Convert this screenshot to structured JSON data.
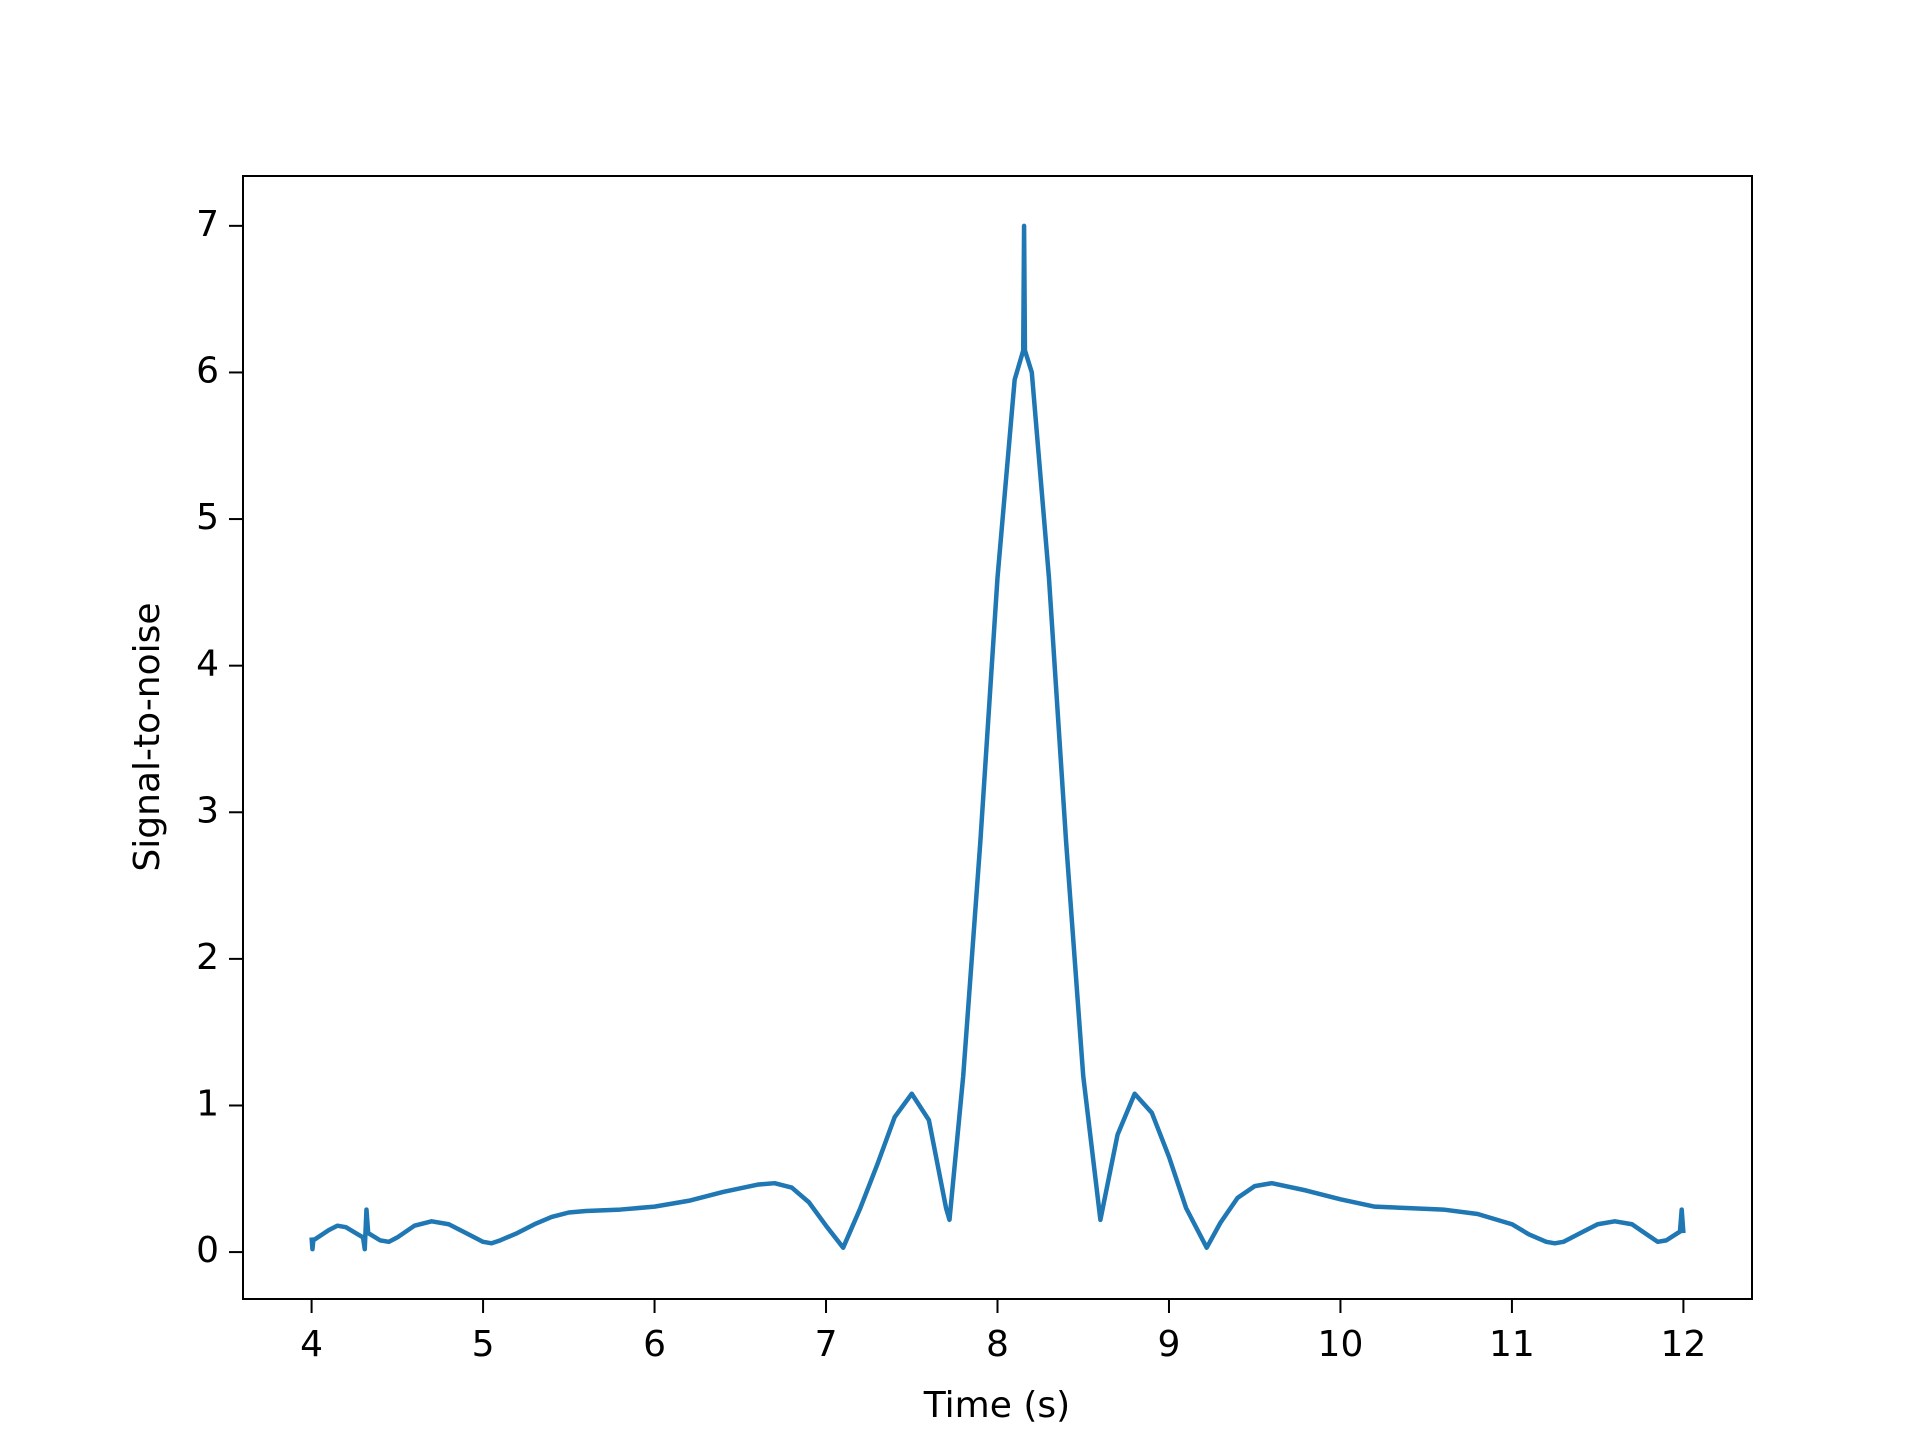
{
  "chart_data": {
    "type": "line",
    "xlabel": "Time (s)",
    "ylabel": "Signal-to-noise",
    "color": "#1f77b4",
    "x": [
      4.0,
      4.005,
      4.01,
      4.1,
      4.15,
      4.2,
      4.3,
      4.31,
      4.32,
      4.33,
      4.4,
      4.45,
      4.5,
      4.6,
      4.7,
      4.8,
      4.9,
      5.0,
      5.05,
      5.1,
      5.2,
      5.3,
      5.4,
      5.5,
      5.6,
      5.8,
      6.0,
      6.2,
      6.4,
      6.6,
      6.7,
      6.8,
      6.9,
      7.0,
      7.1,
      7.2,
      7.3,
      7.4,
      7.5,
      7.6,
      7.7,
      7.72,
      7.8,
      7.9,
      8.0,
      8.1,
      8.15,
      8.155,
      8.16,
      8.2,
      8.3,
      8.4,
      8.5,
      8.6,
      8.7,
      8.8,
      8.9,
      9.0,
      9.1,
      9.22,
      9.3,
      9.4,
      9.5,
      9.6,
      9.8,
      10.0,
      10.2,
      10.4,
      10.6,
      10.8,
      11.0,
      11.1,
      11.2,
      11.25,
      11.3,
      11.4,
      11.5,
      11.6,
      11.7,
      11.8,
      11.85,
      11.9,
      11.98,
      11.99,
      12.0
    ],
    "values": [
      0.1,
      0.02,
      0.08,
      0.15,
      0.18,
      0.17,
      0.1,
      0.02,
      0.29,
      0.13,
      0.08,
      0.07,
      0.1,
      0.18,
      0.21,
      0.19,
      0.13,
      0.07,
      0.06,
      0.08,
      0.13,
      0.19,
      0.24,
      0.27,
      0.28,
      0.29,
      0.31,
      0.35,
      0.41,
      0.46,
      0.47,
      0.44,
      0.34,
      0.18,
      0.03,
      0.3,
      0.6,
      0.92,
      1.08,
      0.9,
      0.3,
      0.22,
      1.2,
      2.8,
      4.6,
      5.95,
      6.15,
      7.0,
      6.15,
      6.0,
      4.6,
      2.8,
      1.2,
      0.22,
      0.8,
      1.08,
      0.95,
      0.65,
      0.3,
      0.03,
      0.2,
      0.37,
      0.45,
      0.47,
      0.42,
      0.36,
      0.31,
      0.3,
      0.29,
      0.26,
      0.19,
      0.12,
      0.07,
      0.06,
      0.07,
      0.13,
      0.19,
      0.21,
      0.19,
      0.11,
      0.07,
      0.08,
      0.14,
      0.29,
      0.13
    ],
    "xlim": [
      3.6,
      12.4
    ],
    "xticks": [
      4,
      5,
      6,
      7,
      8,
      9,
      10,
      11,
      12
    ],
    "ylim": [
      -0.32,
      7.34
    ],
    "yticks": [
      0,
      1,
      2,
      3,
      4,
      5,
      6,
      7
    ]
  }
}
